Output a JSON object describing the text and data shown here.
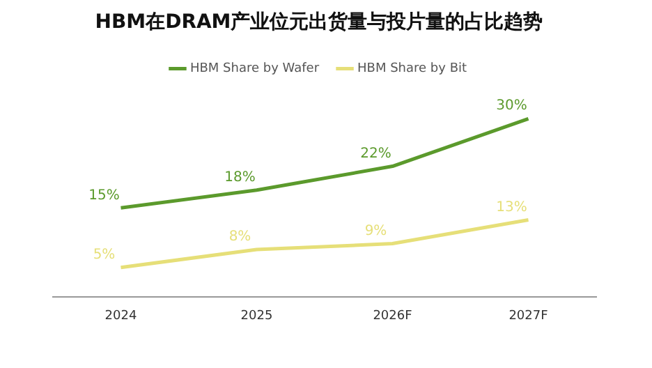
{
  "chart_data": {
    "type": "line",
    "title": "HBM在DRAM产业位元出货量与投片量的占比趋势",
    "categories": [
      "2024",
      "2025",
      "2026F",
      "2027F"
    ],
    "series": [
      {
        "name": "HBM Share by Wafer",
        "color": "#5b9a2c",
        "values": [
          15,
          18,
          22,
          30
        ],
        "value_labels": [
          "15%",
          "18%",
          "22%",
          "30%"
        ]
      },
      {
        "name": "HBM Share by Bit",
        "color": "#e6df78",
        "values": [
          5,
          8,
          9,
          13
        ],
        "value_labels": [
          "5%",
          "8%",
          "9%",
          "13%"
        ]
      }
    ],
    "tick_labels": "x",
    "grid": false,
    "legend": "top",
    "marker": "none",
    "line_style": "solid"
  }
}
